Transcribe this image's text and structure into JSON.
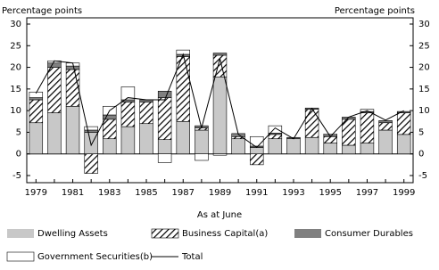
{
  "chart_data": {
    "type": "bar",
    "ylabel": "Percentage points",
    "y2label": "Percentage points",
    "xlabel": "As at June",
    "categories": [
      "1979",
      null,
      "1981",
      null,
      "1983",
      null,
      "1985",
      null,
      "1987",
      null,
      "1989",
      null,
      "1991",
      null,
      "1993",
      null,
      "1995",
      null,
      "1997",
      null,
      "1999"
    ],
    "series": [
      {
        "name": "Dwelling Assets",
        "color": "#c8c8c8",
        "values": [
          7.2,
          9.5,
          11,
          5,
          3.5,
          6.3,
          7,
          3.3,
          7.5,
          5.5,
          17.8,
          3.5,
          1.5,
          3.5,
          3.5,
          3.8,
          2.5,
          2,
          2.5,
          5.5,
          4.5
        ]
      },
      {
        "name": "Business Capital(a)",
        "color": "#000000",
        "hatch": true,
        "values": [
          5.3,
          10.5,
          8.5,
          -4.5,
          4.5,
          5.7,
          5,
          9.7,
          15,
          0.5,
          5,
          0.5,
          -2.5,
          1,
          0,
          6.5,
          1.5,
          6,
          7,
          1.7,
          5
        ]
      },
      {
        "name": "Consumer Durables",
        "color": "#808080",
        "values": [
          0.5,
          1,
          0.8,
          0.5,
          1,
          0.5,
          0.5,
          1.5,
          0.5,
          0.5,
          0.5,
          0.7,
          0.3,
          0.3,
          0.3,
          0.3,
          0.3,
          0.5,
          0.3,
          0.5,
          0.3
        ]
      },
      {
        "name": "Government Securities(b)",
        "color": "#ffffff",
        "values": [
          1.3,
          0.5,
          0.7,
          0.8,
          2,
          3,
          0,
          -2,
          1,
          -1.5,
          -0.3,
          0,
          2.2,
          1.7,
          0,
          0,
          0.3,
          0,
          0.5,
          0,
          0
        ]
      },
      {
        "name": "Total",
        "color": "#000000",
        "line": true,
        "values": [
          14,
          21.5,
          21,
          2,
          10,
          13,
          12.5,
          12.5,
          23,
          6,
          22,
          4.5,
          1.5,
          6,
          3.5,
          10.5,
          4,
          8.5,
          10,
          7.8,
          10
        ]
      }
    ],
    "ylim": [
      -5,
      30
    ],
    "yticks": [
      -5,
      0,
      5,
      10,
      15,
      20,
      25,
      30
    ],
    "y2lim": [
      -5,
      30
    ],
    "y2ticks": [
      -5,
      0,
      5,
      10,
      15,
      20,
      25,
      30
    ]
  }
}
